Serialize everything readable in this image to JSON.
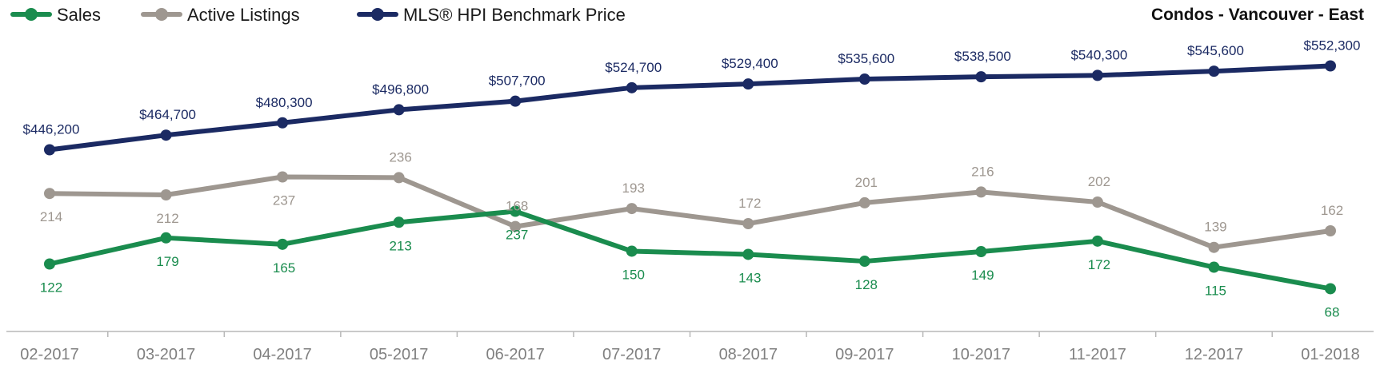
{
  "chart_data": {
    "type": "line",
    "title": "Condos - Vancouver - East",
    "categories": [
      "02-2017",
      "03-2017",
      "04-2017",
      "05-2017",
      "06-2017",
      "07-2017",
      "08-2017",
      "09-2017",
      "10-2017",
      "11-2017",
      "12-2017",
      "01-2018"
    ],
    "series": [
      {
        "name": "Sales",
        "color": "#1a8c4e",
        "values": [
          122,
          179,
          165,
          213,
          237,
          150,
          143,
          128,
          149,
          172,
          115,
          68
        ],
        "labels": [
          "122",
          "179",
          "165",
          "213",
          "237",
          "150",
          "143",
          "128",
          "149",
          "172",
          "115",
          "68"
        ]
      },
      {
        "name": "Active Listings",
        "color": "#9e9790",
        "values": [
          214,
          212,
          237,
          236,
          168,
          193,
          172,
          201,
          216,
          202,
          139,
          162
        ],
        "labels": [
          "214",
          "212",
          "237",
          "236",
          "168",
          "193",
          "172",
          "201",
          "216",
          "202",
          "139",
          "162"
        ]
      },
      {
        "name": "MLS® HPI Benchmark Price",
        "color": "#1b2a63",
        "values": [
          446200,
          464700,
          480300,
          496800,
          507700,
          524700,
          529400,
          535600,
          538500,
          540300,
          545600,
          552300
        ],
        "labels": [
          "$446,200",
          "$464,700",
          "$480,300",
          "$496,800",
          "$507,700",
          "$524,700",
          "$529,400",
          "$535,600",
          "$538,500",
          "$540,300",
          "$545,600",
          "$552,300"
        ]
      }
    ],
    "legend": "top-left",
    "grid": false
  }
}
